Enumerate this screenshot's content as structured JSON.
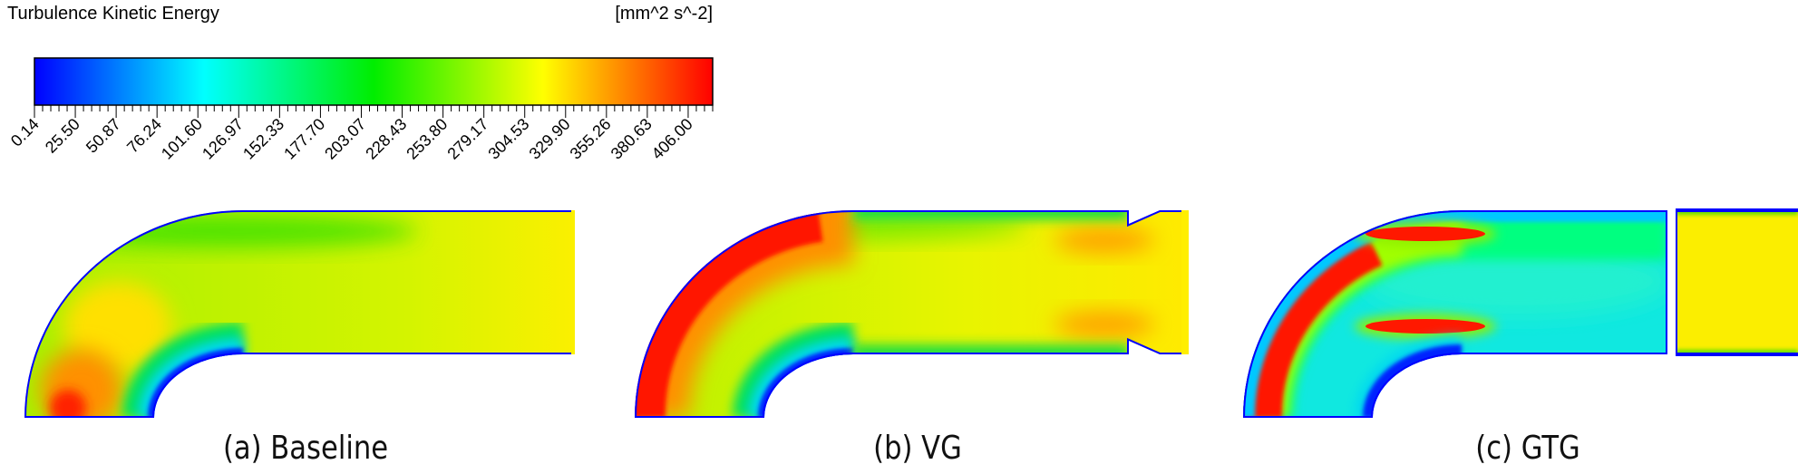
{
  "legend": {
    "title": "Turbulence Kinetic Energy",
    "unit": "[mm^2 s^-2]",
    "ticks": [
      "0.14",
      "25.50",
      "50.87",
      "76.24",
      "101.60",
      "126.97",
      "152.33",
      "177.70",
      "203.07",
      "228.43",
      "253.80",
      "279.17",
      "304.53",
      "329.90",
      "355.26",
      "380.63",
      "406.00"
    ],
    "colormap": [
      "#0000ff",
      "#00ffff",
      "#00ff00",
      "#ffff00",
      "#ff0000"
    ]
  },
  "panels": [
    {
      "caption": "(a) Baseline"
    },
    {
      "caption": "(b) VG"
    },
    {
      "caption": "(c) GTG"
    }
  ]
}
